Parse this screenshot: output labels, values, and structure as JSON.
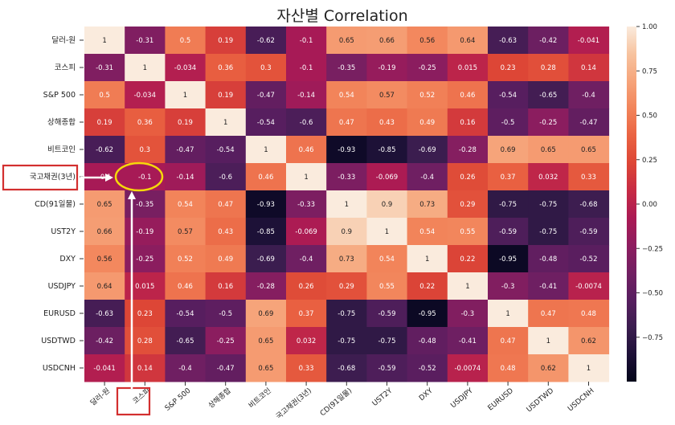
{
  "chart_data": {
    "type": "heatmap",
    "title": "자산별 Correlation",
    "labels": [
      "달러-원",
      "코스피",
      "S&P 500",
      "상해종합",
      "비트코인",
      "국고채권(3년)",
      "CD(91일물)",
      "UST2Y",
      "DXY",
      "USDJPY",
      "EURUSD",
      "USDTWD",
      "USDCNH"
    ],
    "values": [
      [
        "1",
        "-0.31",
        "0.5",
        "0.19",
        "-0.62",
        "-0.1",
        "0.65",
        "0.66",
        "0.56",
        "0.64",
        "-0.63",
        "-0.42",
        "-0.041"
      ],
      [
        "-0.31",
        "1",
        "-0.034",
        "0.36",
        "0.3",
        "-0.1",
        "-0.35",
        "-0.19",
        "-0.25",
        "0.015",
        "0.23",
        "0.28",
        "0.14"
      ],
      [
        "0.5",
        "-0.034",
        "1",
        "0.19",
        "-0.47",
        "-0.14",
        "0.54",
        "0.57",
        "0.52",
        "0.46",
        "-0.54",
        "-0.65",
        "-0.4"
      ],
      [
        "0.19",
        "0.36",
        "0.19",
        "1",
        "-0.54",
        "-0.6",
        "0.47",
        "0.43",
        "0.49",
        "0.16",
        "-0.5",
        "-0.25",
        "-0.47"
      ],
      [
        "-0.62",
        "0.3",
        "-0.47",
        "-0.54",
        "1",
        "0.46",
        "-0.93",
        "-0.85",
        "-0.69",
        "-0.28",
        "0.69",
        "0.65",
        "0.65"
      ],
      [
        "-0.1",
        "-0.1",
        "-0.14",
        "-0.6",
        "0.46",
        "1",
        "-0.33",
        "-0.069",
        "-0.4",
        "0.26",
        "0.37",
        "0.032",
        "0.33"
      ],
      [
        "0.65",
        "-0.35",
        "0.54",
        "0.47",
        "-0.93",
        "-0.33",
        "1",
        "0.9",
        "0.73",
        "0.29",
        "-0.75",
        "-0.75",
        "-0.68"
      ],
      [
        "0.66",
        "-0.19",
        "0.57",
        "0.43",
        "-0.85",
        "-0.069",
        "0.9",
        "1",
        "0.54",
        "0.55",
        "-0.59",
        "-0.75",
        "-0.59"
      ],
      [
        "0.56",
        "-0.25",
        "0.52",
        "0.49",
        "-0.69",
        "-0.4",
        "0.73",
        "0.54",
        "1",
        "0.22",
        "-0.95",
        "-0.48",
        "-0.52"
      ],
      [
        "0.64",
        "0.015",
        "0.46",
        "0.16",
        "-0.28",
        "0.26",
        "0.29",
        "0.55",
        "0.22",
        "1",
        "-0.3",
        "-0.41",
        "-0.0074"
      ],
      [
        "-0.63",
        "0.23",
        "-0.54",
        "-0.5",
        "0.69",
        "0.37",
        "-0.75",
        "-0.59",
        "-0.95",
        "-0.3",
        "1",
        "0.47",
        "0.48"
      ],
      [
        "-0.42",
        "0.28",
        "-0.65",
        "-0.25",
        "0.65",
        "0.032",
        "-0.75",
        "-0.75",
        "-0.48",
        "-0.41",
        "0.47",
        "1",
        "0.62"
      ],
      [
        "-0.041",
        "0.14",
        "-0.4",
        "-0.47",
        "0.65",
        "0.33",
        "-0.68",
        "-0.59",
        "-0.52",
        "-0.0074",
        "0.48",
        "0.62",
        "1"
      ]
    ],
    "colorbar": {
      "range": [
        -1.0,
        1.0
      ],
      "ticks": [
        {
          "value": 1.0,
          "label": "1.00"
        },
        {
          "value": 0.75,
          "label": "0.75"
        },
        {
          "value": 0.5,
          "label": "0.50"
        },
        {
          "value": 0.25,
          "label": "0.25"
        },
        {
          "value": 0.0,
          "label": "0.00"
        },
        {
          "value": -0.25,
          "label": "−0.25"
        },
        {
          "value": -0.5,
          "label": "−0.50"
        },
        {
          "value": -0.75,
          "label": "−0.75"
        }
      ]
    },
    "colormap": [
      "#03051a",
      "#1e1138",
      "#3b1d4f",
      "#571e5f",
      "#721f62",
      "#8e1d5f",
      "#ab1a54",
      "#c72b44",
      "#dd4636",
      "#ea6342",
      "#f2845a",
      "#f6a47a",
      "#f7c39f",
      "#faebdd"
    ],
    "annotations": {
      "highlight_cell_value": "-0.1",
      "box_color": "#d32f2f",
      "circle_color": "#f5d90a",
      "arrow_color": "#ffffff"
    }
  }
}
